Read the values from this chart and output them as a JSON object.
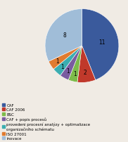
{
  "labels": [
    "CAF",
    "CAF 2006",
    "BSC",
    "CAF + popis procesů",
    "provedeni procesní analýzy + optimalizace\norganizačního schématu",
    "ISO 27001",
    "inovace"
  ],
  "values": [
    11,
    2,
    1,
    1,
    1,
    1,
    8
  ],
  "colors": [
    "#3a5a9c",
    "#c0392b",
    "#7dbb4a",
    "#7a5ca0",
    "#3badb0",
    "#e07b30",
    "#a0bdd8"
  ],
  "legend_labels": [
    "CAF",
    "CAF 2006",
    "BSC",
    "CAF + popis procesů",
    "provedeni procesní analýzy + optimalizace\norganizačního schématu",
    "ISO 27001",
    "inovace"
  ],
  "figsize": [
    1.82,
    2.03
  ],
  "dpi": 100,
  "bg_color": "#f0ebe4"
}
